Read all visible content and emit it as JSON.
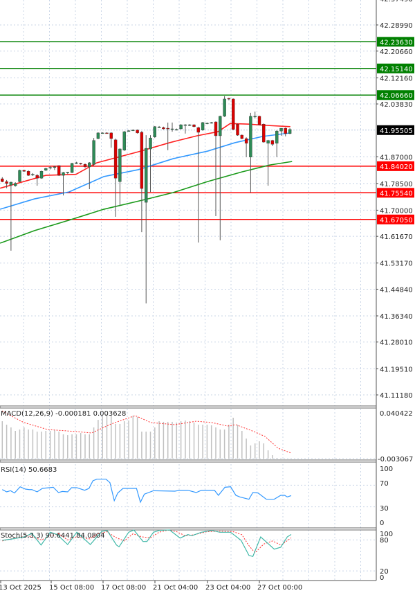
{
  "chart_data": {
    "type": "candlestick",
    "price_axis": {
      "top_partial": "42.37490",
      "ticks": [
        "42.28990",
        "42.20660",
        "42.12160",
        "42.03830",
        "41.87000",
        "41.78500",
        "41.70000",
        "41.61670",
        "41.53170",
        "41.44840",
        "41.36340",
        "41.28010",
        "41.19510",
        "41.11180"
      ]
    },
    "current_price": "41.95505",
    "levels": [
      {
        "value": "42.23630",
        "color": "#008000"
      },
      {
        "value": "42.15140",
        "color": "#008000"
      },
      {
        "value": "42.06660",
        "color": "#008000"
      },
      {
        "value": "41.84020",
        "color": "#ff0000"
      },
      {
        "value": "41.75540",
        "color": "#ff0000"
      },
      {
        "value": "41.67050",
        "color": "#ff0000"
      }
    ],
    "colors": {
      "up": "#2e8b57",
      "down": "#dd0000",
      "wick": "#555555",
      "grid": "#c8d4e6"
    },
    "candles": [
      [
        41.8,
        41.805,
        41.789,
        41.791
      ],
      [
        41.791,
        41.796,
        41.77,
        41.785
      ],
      [
        41.78,
        41.791,
        41.571,
        41.789
      ],
      [
        41.778,
        41.789,
        41.775,
        41.785
      ],
      [
        41.791,
        41.829,
        41.789,
        41.827
      ],
      [
        41.827,
        41.829,
        41.822,
        41.824
      ],
      [
        41.824,
        41.827,
        41.809,
        41.811
      ],
      [
        41.813,
        41.818,
        41.809,
        41.814
      ],
      [
        41.811,
        41.815,
        41.778,
        41.802
      ],
      [
        41.802,
        41.826,
        41.8,
        41.824
      ],
      [
        41.827,
        41.835,
        41.825,
        41.833
      ],
      [
        41.836,
        41.84,
        41.83,
        41.836
      ],
      [
        41.838,
        41.842,
        41.828,
        41.838
      ],
      [
        41.842,
        41.843,
        41.809,
        41.811
      ],
      [
        41.811,
        41.822,
        41.747,
        41.82
      ],
      [
        41.82,
        41.822,
        41.815,
        41.821
      ],
      [
        41.82,
        41.851,
        41.818,
        41.849
      ],
      [
        41.851,
        41.854,
        41.847,
        41.851
      ],
      [
        41.849,
        41.851,
        41.845,
        41.848
      ],
      [
        41.846,
        41.849,
        41.835,
        41.838
      ],
      [
        41.838,
        41.853,
        41.767,
        41.851
      ],
      [
        41.846,
        41.93,
        41.84,
        41.922
      ],
      [
        41.928,
        41.948,
        41.926,
        41.946
      ],
      [
        41.946,
        41.948,
        41.944,
        41.946
      ],
      [
        41.946,
        41.948,
        41.944,
        41.945
      ],
      [
        41.946,
        41.948,
        41.899,
        41.928
      ],
      [
        41.924,
        41.928,
        41.679,
        41.802
      ],
      [
        41.791,
        41.897,
        41.714,
        41.895
      ],
      [
        41.891,
        41.952,
        41.889,
        41.95
      ],
      [
        41.953,
        41.955,
        41.95,
        41.953
      ],
      [
        41.955,
        41.957,
        41.952,
        41.955
      ],
      [
        41.955,
        41.957,
        41.944,
        41.946
      ],
      [
        41.948,
        41.952,
        41.63,
        41.769
      ],
      [
        41.725,
        41.939,
        41.403,
        41.897
      ],
      [
        41.895,
        41.939,
        41.758,
        41.93
      ],
      [
        41.933,
        41.968,
        41.93,
        41.966
      ],
      [
        41.965,
        41.968,
        41.962,
        41.965
      ],
      [
        41.963,
        41.966,
        41.957,
        41.959
      ],
      [
        41.961,
        41.979,
        41.891,
        41.96
      ],
      [
        41.959,
        41.979,
        41.95,
        41.959
      ],
      [
        41.957,
        41.96,
        41.954,
        41.957
      ],
      [
        41.959,
        41.974,
        41.957,
        41.972
      ],
      [
        41.972,
        41.974,
        41.944,
        41.972
      ],
      [
        41.972,
        41.974,
        41.968,
        41.972
      ],
      [
        41.972,
        41.974,
        41.964,
        41.966
      ],
      [
        41.963,
        41.966,
        41.597,
        41.948
      ],
      [
        41.955,
        41.981,
        41.953,
        41.979
      ],
      [
        41.977,
        41.979,
        41.974,
        41.977
      ],
      [
        41.979,
        41.981,
        41.976,
        41.979
      ],
      [
        41.981,
        41.983,
        41.681,
        41.937
      ],
      [
        41.937,
        42.001,
        41.604,
        41.999
      ],
      [
        41.999,
        42.063,
        41.997,
        42.054
      ],
      [
        42.056,
        42.058,
        42.05,
        42.054
      ],
      [
        42.054,
        42.056,
        41.955,
        41.957
      ],
      [
        41.974,
        41.976,
        41.937,
        41.939
      ],
      [
        41.939,
        41.941,
        41.926,
        41.928
      ],
      [
        41.928,
        41.932,
        41.869,
        41.913
      ],
      [
        41.869,
        42.01,
        41.756,
        41.999
      ],
      [
        41.999,
        42.014,
        41.992,
        41.999
      ],
      [
        41.999,
        42.001,
        41.97,
        41.972
      ],
      [
        41.974,
        41.976,
        41.915,
        41.917
      ],
      [
        41.913,
        41.924,
        41.778,
        41.922
      ],
      [
        41.922,
        41.924,
        41.904,
        41.91
      ],
      [
        41.913,
        41.955,
        41.869,
        41.952
      ],
      [
        41.952,
        41.961,
        41.937,
        41.961
      ],
      [
        41.961,
        41.963,
        41.935,
        41.944
      ],
      [
        41.944,
        41.961,
        41.942,
        41.957
      ]
    ],
    "moving_averages": [
      {
        "color": "#ff2020",
        "points": [
          [
            -0.5,
            41.77
          ],
          [
            10,
            41.811
          ],
          [
            16.9,
            41.814
          ],
          [
            21.7,
            41.851
          ],
          [
            31.2,
            41.886
          ],
          [
            38.4,
            41.915
          ],
          [
            44.7,
            41.937
          ],
          [
            49.5,
            41.95
          ],
          [
            52.3,
            41.976
          ],
          [
            56.6,
            41.974
          ],
          [
            60.6,
            41.97
          ],
          [
            66.1,
            41.966
          ]
        ]
      },
      {
        "color": "#3399ff",
        "points": [
          [
            -0.5,
            41.703
          ],
          [
            7.4,
            41.736
          ],
          [
            15.3,
            41.758
          ],
          [
            23.3,
            41.807
          ],
          [
            31.2,
            41.829
          ],
          [
            39.2,
            41.864
          ],
          [
            47.1,
            41.888
          ],
          [
            53.4,
            41.915
          ],
          [
            59.8,
            41.935
          ],
          [
            66.1,
            41.946
          ]
        ]
      },
      {
        "color": "#1a9a1a",
        "points": [
          [
            -0.5,
            41.595
          ],
          [
            7.4,
            41.635
          ],
          [
            15.3,
            41.668
          ],
          [
            23.3,
            41.703
          ],
          [
            32.8,
            41.734
          ],
          [
            39.2,
            41.756
          ],
          [
            47.1,
            41.791
          ],
          [
            55,
            41.822
          ],
          [
            61.4,
            41.844
          ],
          [
            66.5,
            41.855
          ]
        ]
      }
    ],
    "x_labels": [
      "13 Oct 2025",
      "15 Oct 08:00",
      "17 Oct 08:00",
      "21 Oct 04:00",
      "23 Oct 04:00",
      "27 Oct 00:00"
    ],
    "macd": {
      "label": "MACD(12,26,9) -0.000181 0.003628",
      "axis_max": "0.040422",
      "axis_min": "-0.003067",
      "histogram_color": "#c0c0c0",
      "signal_color": "#ff3030",
      "histogram": [
        0.0325,
        0.0292,
        0.0266,
        0.0233,
        0.0246,
        0.0266,
        0.0246,
        0.0246,
        0.0226,
        0.0226,
        0.0233,
        0.0233,
        0.024,
        0.0226,
        0.02,
        0.0193,
        0.02,
        0.02,
        0.0213,
        0.02,
        0.02,
        0.0266,
        0.0338,
        0.0378,
        0.0391,
        0.0378,
        0.0299,
        0.0299,
        0.0325,
        0.0332,
        0.0378,
        0.0365,
        0.0226,
        0.0226,
        0.0226,
        0.0266,
        0.0325,
        0.0319,
        0.0319,
        0.0319,
        0.0312,
        0.0325,
        0.0332,
        0.0325,
        0.0312,
        0.0292,
        0.0292,
        0.0292,
        0.0286,
        0.0266,
        0.0246,
        0.0246,
        0.0292,
        0.0358,
        0.0292,
        0.0233,
        0.016,
        0.0094,
        0.0114,
        0.0134,
        0.0114,
        0.0048,
        0.0002,
        -0.0024,
        -0.0028,
        -0.003,
        -0.003
      ],
      "signal": [
        [
          0,
          0.0424
        ],
        [
          1.9,
          0.0378
        ],
        [
          5,
          0.0312
        ],
        [
          10.4,
          0.0246
        ],
        [
          17.1,
          0.0226
        ],
        [
          20.5,
          0.0213
        ],
        [
          25,
          0.0299
        ],
        [
          30.5,
          0.0378
        ],
        [
          34.1,
          0.0312
        ],
        [
          39.6,
          0.0292
        ],
        [
          44.5,
          0.0325
        ],
        [
          48.1,
          0.0312
        ],
        [
          51.7,
          0.0279
        ],
        [
          53.6,
          0.0292
        ],
        [
          57.8,
          0.0226
        ],
        [
          60.3,
          0.018
        ],
        [
          63.3,
          0.0068
        ],
        [
          66.3,
          0.0022
        ]
      ]
    },
    "rsi": {
      "label": "RSI(14) 50.6683",
      "color": "#3399ff",
      "axis": [
        "100",
        "70",
        "30",
        "0"
      ],
      "values": [
        [
          0,
          61.9
        ],
        [
          1,
          57.7
        ],
        [
          1.9,
          59.8
        ],
        [
          2.8,
          55.6
        ],
        [
          4.1,
          67.1
        ],
        [
          5.3,
          62.8
        ],
        [
          6.2,
          61.9
        ],
        [
          6.8,
          61.9
        ],
        [
          8,
          57.7
        ],
        [
          9.2,
          64.1
        ],
        [
          11.7,
          66.2
        ],
        [
          12.9,
          56.4
        ],
        [
          13.8,
          58.5
        ],
        [
          15,
          57.7
        ],
        [
          15.9,
          65.4
        ],
        [
          17.1,
          65.4
        ],
        [
          18.9,
          60.6
        ],
        [
          19.9,
          64.1
        ],
        [
          20.8,
          78.2
        ],
        [
          21.7,
          81.2
        ],
        [
          23.8,
          81.2
        ],
        [
          24.7,
          74.8
        ],
        [
          25.7,
          41.5
        ],
        [
          26.5,
          55.6
        ],
        [
          27.7,
          64.1
        ],
        [
          30.8,
          64.1
        ],
        [
          31.7,
          38.5
        ],
        [
          32.6,
          53.4
        ],
        [
          34.7,
          59.8
        ],
        [
          39.6,
          59.0
        ],
        [
          40.8,
          60.6
        ],
        [
          42.6,
          60.6
        ],
        [
          44.5,
          56.4
        ],
        [
          45.7,
          60.6
        ],
        [
          48.7,
          60.6
        ],
        [
          49.6,
          51.3
        ],
        [
          51.1,
          66.2
        ],
        [
          52.4,
          67.1
        ],
        [
          53.6,
          51.3
        ],
        [
          54.5,
          48.3
        ],
        [
          56.6,
          44.0
        ],
        [
          57.5,
          56.4
        ],
        [
          58.7,
          55.6
        ],
        [
          60.6,
          44.0
        ],
        [
          62.4,
          44.0
        ],
        [
          63.9,
          51.3
        ],
        [
          64.8,
          51.3
        ],
        [
          65.4,
          48.3
        ],
        [
          66.3,
          50.7
        ]
      ]
    },
    "stoch": {
      "label": "Stoch(5,3,3) 90.6441 84.0804",
      "main_color": "#40b8a8",
      "signal_color": "#ff3030",
      "axis": [
        "100",
        "80",
        "20",
        "0"
      ],
      "main": [
        [
          0,
          79.2
        ],
        [
          1.9,
          81.4
        ],
        [
          5,
          85.9
        ],
        [
          6.8,
          92.6
        ],
        [
          8.9,
          70.2
        ],
        [
          11,
          94.9
        ],
        [
          12.6,
          90.4
        ],
        [
          15,
          71.1
        ],
        [
          17.1,
          94.9
        ],
        [
          20.2,
          71.1
        ],
        [
          22.9,
          97
        ],
        [
          24.1,
          98
        ],
        [
          26.2,
          70.2
        ],
        [
          26.8,
          66.7
        ],
        [
          29,
          94.9
        ],
        [
          30.2,
          99.3
        ],
        [
          32.3,
          76.9
        ],
        [
          33.2,
          76.9
        ],
        [
          34.7,
          94.9
        ],
        [
          36,
          98.4
        ],
        [
          38.4,
          99.3
        ],
        [
          40.8,
          83.6
        ],
        [
          42.6,
          90.4
        ],
        [
          43.5,
          88.2
        ],
        [
          45.7,
          94.9
        ],
        [
          48.1,
          98.4
        ],
        [
          49.9,
          94.9
        ],
        [
          52.4,
          94.9
        ],
        [
          54.8,
          79.2
        ],
        [
          56.6,
          50.1
        ],
        [
          57.5,
          47.9
        ],
        [
          59.3,
          85.9
        ],
        [
          62.4,
          62.1
        ],
        [
          63.9,
          65.8
        ],
        [
          65.4,
          85.9
        ],
        [
          66.3,
          90.6
        ]
      ],
      "signal": [
        [
          0,
          78
        ],
        [
          3,
          84
        ],
        [
          6,
          88
        ],
        [
          9,
          80
        ],
        [
          11,
          88
        ],
        [
          13,
          92
        ],
        [
          15,
          80
        ],
        [
          17,
          86
        ],
        [
          20,
          82
        ],
        [
          22,
          92
        ],
        [
          24,
          96
        ],
        [
          26,
          85
        ],
        [
          28,
          78
        ],
        [
          30,
          92
        ],
        [
          32,
          86
        ],
        [
          34,
          84
        ],
        [
          36,
          95
        ],
        [
          38,
          99
        ],
        [
          40,
          96
        ],
        [
          42,
          88
        ],
        [
          44,
          90
        ],
        [
          47,
          96
        ],
        [
          50,
          97
        ],
        [
          53,
          96
        ],
        [
          55,
          90
        ],
        [
          56.5,
          70
        ],
        [
          58,
          55
        ],
        [
          60,
          72
        ],
        [
          62,
          78
        ],
        [
          64,
          70
        ],
        [
          66.3,
          84.1
        ]
      ]
    }
  }
}
